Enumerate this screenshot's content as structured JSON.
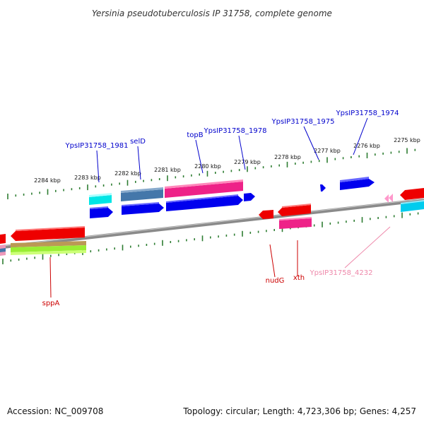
{
  "title": "Yersinia pseudotuberculosis IP 31758, complete genome",
  "footer": {
    "accession": "Accession: NC_009708",
    "topology": "Topology: circular; Length: 4,723,306 bp; Genes: 4,257"
  },
  "ruler_labels": [
    "2284 kbp",
    "2283 kbp",
    "2282 kbp",
    "2281 kbp",
    "2280 kbp",
    "2279 kbp",
    "2278 kbp",
    "2277 kbp",
    "2276 kbp",
    "2275 kbp"
  ],
  "gene_labels": [
    {
      "text": "YpsIP31758_1981",
      "color": "#0000cc"
    },
    {
      "text": "selD",
      "color": "#0000cc"
    },
    {
      "text": "topB",
      "color": "#0000cc"
    },
    {
      "text": "YpsIP31758_1978",
      "color": "#0000cc"
    },
    {
      "text": "YpsIP31758_1975",
      "color": "#0000cc"
    },
    {
      "text": "YpsIP31758_1974",
      "color": "#0000cc"
    },
    {
      "text": "sppA",
      "color": "#cc0000"
    },
    {
      "text": "nudG",
      "color": "#cc0000"
    },
    {
      "text": "xth",
      "color": "#cc0000"
    },
    {
      "text": "YpsIP31758_4232",
      "color": "#ee88aa"
    }
  ],
  "colors": {
    "backbone": "#888888",
    "ruler": "#2e7d32",
    "forward_cds": "#0000ee",
    "reverse_cds": "#ee0000",
    "pink": "#ee2288",
    "cyan": "#00dddd",
    "steel": "#4477aa",
    "light_pink": "#ffaacc",
    "olive": "#aa9966",
    "lime": "#99ee33"
  }
}
